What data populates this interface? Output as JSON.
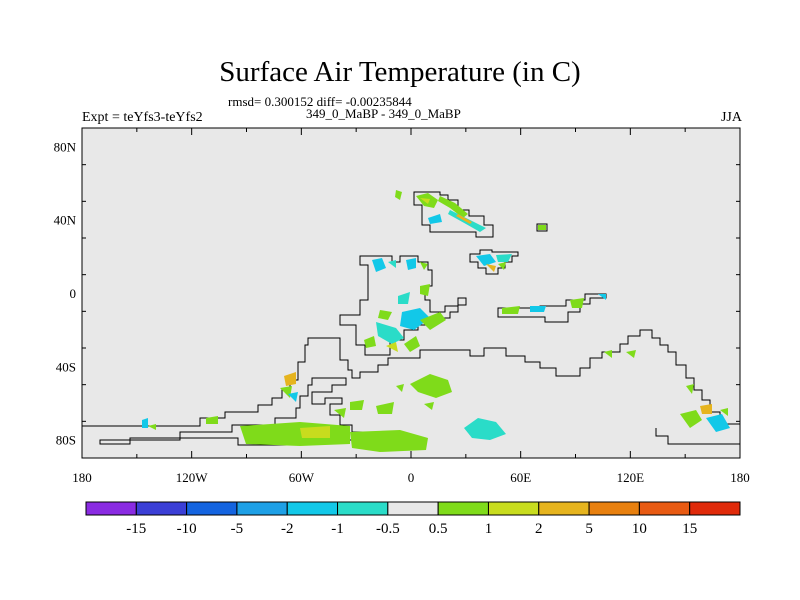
{
  "title": "Surface Air Temperature (in C)",
  "stats": "rmsd= 0.300152 diff= -0.00235844",
  "run_label": "349_0_MaBP - 349_0_MaBP",
  "expt_label": "Expt = teYfs3-teYfs2",
  "season": "JJA",
  "axes": {
    "lat_ticks": [
      {
        "value": 80,
        "label": "80N"
      },
      {
        "value": 40,
        "label": "40N"
      },
      {
        "value": 0,
        "label": "0"
      },
      {
        "value": -40,
        "label": "40S"
      },
      {
        "value": -80,
        "label": "80S"
      }
    ],
    "lon_ticks": [
      {
        "value": -180,
        "label": "180"
      },
      {
        "value": -120,
        "label": "120W"
      },
      {
        "value": -60,
        "label": "60W"
      },
      {
        "value": 0,
        "label": "0"
      },
      {
        "value": 60,
        "label": "60E"
      },
      {
        "value": 120,
        "label": "120E"
      },
      {
        "value": 180,
        "label": "180"
      }
    ],
    "lat_range": [
      -90,
      90
    ],
    "lon_range": [
      -180,
      180
    ]
  },
  "colorbar": {
    "colors": [
      "#8a2be2",
      "#3b3fd6",
      "#1464e0",
      "#1ea0e6",
      "#12c8e8",
      "#2adcc8",
      "#e8e8e8",
      "#7fdb1a",
      "#c8dc1e",
      "#e6b41e",
      "#e8800f",
      "#e85a12",
      "#e02a0a"
    ],
    "labels": [
      "-15",
      "-10",
      "-5",
      "-2",
      "-1",
      "-0.5",
      "0.5",
      "1",
      "2",
      "5",
      "10",
      "15"
    ]
  },
  "map_colors": {
    "background": "#e8e8e8",
    "coast": "#000000"
  }
}
